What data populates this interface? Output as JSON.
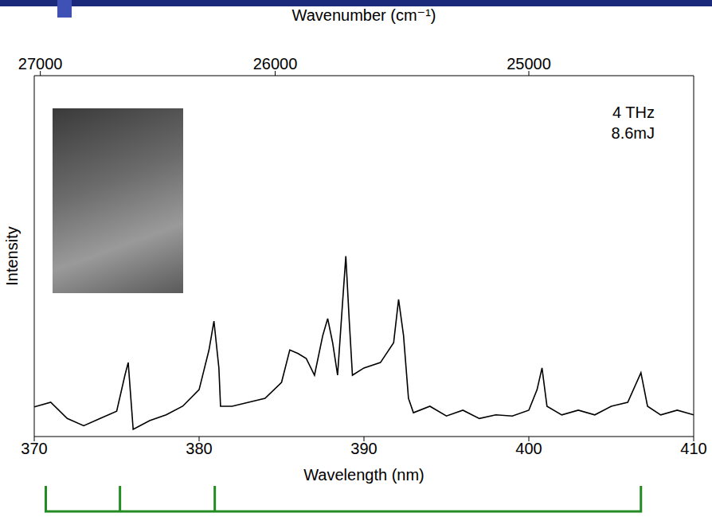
{
  "chart_data": {
    "type": "line",
    "x_label": "Wavelength (nm)",
    "y_label": "Intensity",
    "x2_label": "Wavenumber (cm⁻¹)",
    "annotations": [
      "4 THz",
      "8.6mJ"
    ],
    "xlim": [
      370,
      410
    ],
    "xticks": [
      370,
      380,
      390,
      400,
      410
    ],
    "x2lim": [
      27027.03,
      24390.24
    ],
    "x2ticks": [
      27000,
      26000,
      25000
    ],
    "ylim": [
      0,
      100
    ],
    "yticks": [],
    "tick_labels": "x",
    "grid": false,
    "color": "#000000",
    "x": [
      370,
      371,
      372,
      373,
      374,
      375,
      375.5,
      375.7,
      376,
      377,
      378,
      379,
      380,
      380.6,
      380.9,
      381.2,
      381.3,
      382,
      383,
      384,
      385,
      385.5,
      386,
      386.5,
      387,
      387.5,
      387.8,
      388.1,
      388.4,
      388.7,
      388.9,
      389.1,
      389.3,
      390,
      391,
      391.8,
      392.1,
      392.4,
      392.7,
      393,
      394,
      395,
      396,
      397,
      398,
      399,
      400,
      400.5,
      400.8,
      401.1,
      402,
      403,
      404,
      405,
      406,
      406.8,
      407.2,
      408,
      409,
      410
    ],
    "values": [
      8.2,
      9.5,
      5,
      3,
      5,
      7,
      17,
      20.5,
      2,
      4.4,
      6,
      8.4,
      13,
      24,
      32,
      19,
      8.4,
      8.4,
      9.5,
      10.6,
      15,
      24,
      23,
      21.6,
      17,
      28,
      32.7,
      26,
      17,
      37,
      50,
      32.7,
      17,
      19,
      20.5,
      26,
      38,
      28,
      10.6,
      6.6,
      8.4,
      5.7,
      7.3,
      5,
      6,
      5.7,
      7.3,
      13,
      19,
      8.4,
      6,
      7.3,
      6,
      8.4,
      9.5,
      17.7,
      8.4,
      6,
      7.3,
      6
    ],
    "bracket": {
      "positions": [
        370.7,
        375.2,
        380.95,
        406.8
      ],
      "color": "#228b22"
    }
  }
}
